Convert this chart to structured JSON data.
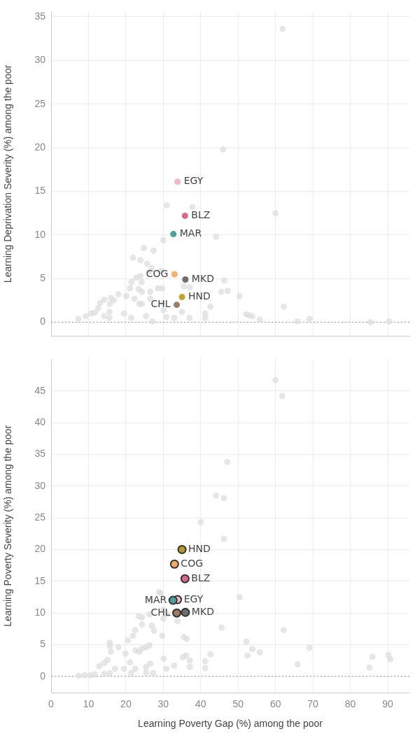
{
  "chart_data": [
    {
      "type": "scatter",
      "ylabel": "Learning Deprivation Severity (%) among the poor",
      "xlim": [
        0,
        95.8
      ],
      "xticks": [
        0,
        10,
        20,
        30,
        40,
        50,
        60,
        70,
        80,
        90
      ],
      "ylim": [
        -1.6,
        35.6
      ],
      "yticks": [
        0,
        5,
        10,
        15,
        20,
        25,
        30,
        35
      ],
      "tick_labels": "y",
      "grid": true,
      "ref_lines": [
        {
          "axis": "y",
          "value": 0,
          "line_style": "dotted",
          "color": "#999999"
        }
      ],
      "series": [
        {
          "color": "#dddddd",
          "x": [
            61.9,
            46.0,
            60.0,
            30.9,
            37.8,
            44.1,
            30.0,
            24.8,
            27.4,
            21.9,
            23.9,
            25.7,
            26.9,
            26.3,
            29.3,
            22.8,
            23.9,
            24.2,
            21.5,
            28.6,
            29.7,
            35.5,
            37.1,
            46.3,
            47.2,
            45.5,
            50.4,
            23.4,
            21.1,
            24.3,
            26.5,
            18.0,
            20.1,
            22.3,
            26.5,
            16.0,
            16.8,
            14.2,
            13.1,
            15.7,
            12.6,
            15.6,
            11.7,
            23.6,
            24.3,
            29.7,
            30.1,
            35.0,
            37.0,
            42.6,
            9.3,
            10.7,
            7.3,
            14.2,
            15.6,
            19.5,
            21.4,
            25.4,
            27.1,
            30.8,
            32.9,
            41.2,
            41.2,
            52.2,
            53.8,
            62.2,
            52.9,
            55.8,
            65.9,
            69.1,
            85.4,
            90.4
          ],
          "values": [
            33.6,
            19.8,
            12.5,
            13.4,
            13.2,
            9.8,
            9.4,
            8.5,
            8.2,
            7.4,
            7.1,
            6.7,
            6.2,
            5.8,
            5.9,
            5.1,
            5.3,
            4.6,
            4.6,
            3.9,
            3.9,
            4.1,
            4.0,
            4.8,
            3.6,
            3.5,
            3.0,
            3.8,
            3.9,
            3.5,
            3.5,
            3.2,
            3.0,
            2.7,
            2.7,
            2.8,
            2.5,
            2.6,
            2.2,
            2.1,
            1.6,
            1.2,
            1.1,
            2.1,
            2.1,
            2.2,
            1.4,
            1.2,
            0.5,
            1.8,
            0.7,
            1.0,
            0.4,
            0.7,
            0.5,
            1.0,
            0.5,
            0.7,
            0.1,
            0.6,
            0.5,
            0.5,
            1.0,
            0.9,
            0.7,
            1.8,
            0.8,
            0.3,
            0.1,
            0.4,
            0.0,
            0.1
          ]
        },
        {
          "name": "EGY",
          "color": "#f4b6c8",
          "x": [
            33.8
          ],
          "values": [
            16.1
          ]
        },
        {
          "name": "BLZ",
          "color": "#d9688f",
          "x": [
            35.8
          ],
          "values": [
            12.2
          ]
        },
        {
          "name": "MAR",
          "color": "#4f9e9a",
          "x": [
            32.7
          ],
          "values": [
            10.1
          ]
        },
        {
          "name": "COG",
          "color": "#f5b06c",
          "x": [
            33.0
          ],
          "values": [
            5.5
          ]
        },
        {
          "name": "MKD",
          "color": "#6e6e6e",
          "x": [
            35.9
          ],
          "values": [
            4.9
          ]
        },
        {
          "name": "HND",
          "color": "#c2a32e",
          "x": [
            35.0
          ],
          "values": [
            2.9
          ]
        },
        {
          "name": "CHL",
          "color": "#a07a62",
          "x": [
            33.6
          ],
          "values": [
            2.0
          ]
        }
      ]
    },
    {
      "type": "scatter",
      "xlabel": "Learning Poverty Gap (%) among the poor",
      "ylabel": "Learning Poverty Severity (%) among the poor",
      "xlim": [
        0,
        95.8
      ],
      "xticks": [
        0,
        10,
        20,
        30,
        40,
        50,
        60,
        70,
        80,
        90
      ],
      "ylim": [
        -2.6,
        50
      ],
      "yticks": [
        0,
        5,
        10,
        15,
        20,
        25,
        30,
        35,
        40,
        45
      ],
      "grid": true,
      "ref_lines": [
        {
          "axis": "y",
          "value": 0,
          "line_style": "dotted",
          "color": "#999999"
        }
      ],
      "series": [
        {
          "color": "#dddddd",
          "x": [
            60.0,
            61.8,
            47.1,
            44.1,
            46.2,
            40.0,
            46.2,
            28.9,
            29.3,
            26.5,
            50.4,
            30.0,
            23.4,
            24.3,
            26.3,
            30.0,
            31.0,
            33.8,
            24.3,
            26.9,
            27.5,
            22.5,
            45.6,
            21.9,
            29.7,
            20.5,
            35.5,
            36.3,
            15.7,
            15.7,
            18.0,
            16.0,
            19.9,
            23.6,
            24.3,
            25.4,
            26.3,
            22.6,
            30.1,
            32.9,
            35.2,
            36.1,
            37.1,
            37.1,
            41.2,
            41.2,
            42.6,
            52.5,
            53.8,
            52.2,
            15.1,
            14.2,
            12.9,
            17.1,
            19.5,
            21.1,
            22.5,
            26.5,
            25.4,
            27.3,
            25.4,
            21.4,
            30.8,
            15.7,
            14.2,
            11.7,
            10.5,
            7.4,
            9.0,
            62.2,
            55.8,
            69.1,
            65.9,
            85.9,
            90.2,
            90.7,
            85.1
          ],
          "values": [
            46.7,
            44.2,
            33.8,
            28.5,
            28.1,
            24.3,
            21.7,
            13.3,
            13.1,
            11.9,
            12.5,
            10.5,
            9.5,
            9.3,
            9.8,
            9.1,
            9.8,
            8.7,
            8.2,
            8.0,
            7.2,
            7.3,
            7.7,
            6.4,
            6.4,
            5.7,
            6.2,
            5.9,
            5.3,
            4.8,
            4.6,
            3.9,
            3.6,
            3.9,
            4.4,
            4.6,
            4.9,
            4.1,
            2.8,
            1.7,
            3.0,
            3.3,
            2.5,
            1.5,
            2.4,
            1.3,
            3.5,
            3.3,
            4.3,
            5.5,
            2.6,
            2.1,
            1.6,
            1.2,
            1.2,
            2.2,
            1.2,
            2.0,
            1.5,
            0.5,
            0.6,
            0.5,
            1.2,
            0.5,
            0.4,
            0.3,
            0.2,
            0.1,
            0.2,
            7.3,
            3.8,
            4.5,
            1.9,
            3.1,
            3.4,
            2.7,
            1.4
          ]
        },
        {
          "name": "HND",
          "color": "#b8982c",
          "x": [
            35.0
          ],
          "values": [
            20.0
          ]
        },
        {
          "name": "COG",
          "color": "#f5ac66",
          "x": [
            33.0
          ],
          "values": [
            17.7
          ]
        },
        {
          "name": "BLZ",
          "color": "#d6678f",
          "x": [
            35.8
          ],
          "values": [
            15.4
          ]
        },
        {
          "name": "MAR",
          "color": "#4f9e9a",
          "x": [
            32.6
          ],
          "values": [
            12.0
          ]
        },
        {
          "name": "EGY",
          "color": "#f4b6c8",
          "x": [
            33.8
          ],
          "values": [
            12.1
          ]
        },
        {
          "name": "CHL",
          "color": "#a07a62",
          "x": [
            33.6
          ],
          "values": [
            10.0
          ]
        },
        {
          "name": "MKD",
          "color": "#6e6e6e",
          "x": [
            35.9
          ],
          "values": [
            10.1
          ]
        }
      ]
    }
  ]
}
